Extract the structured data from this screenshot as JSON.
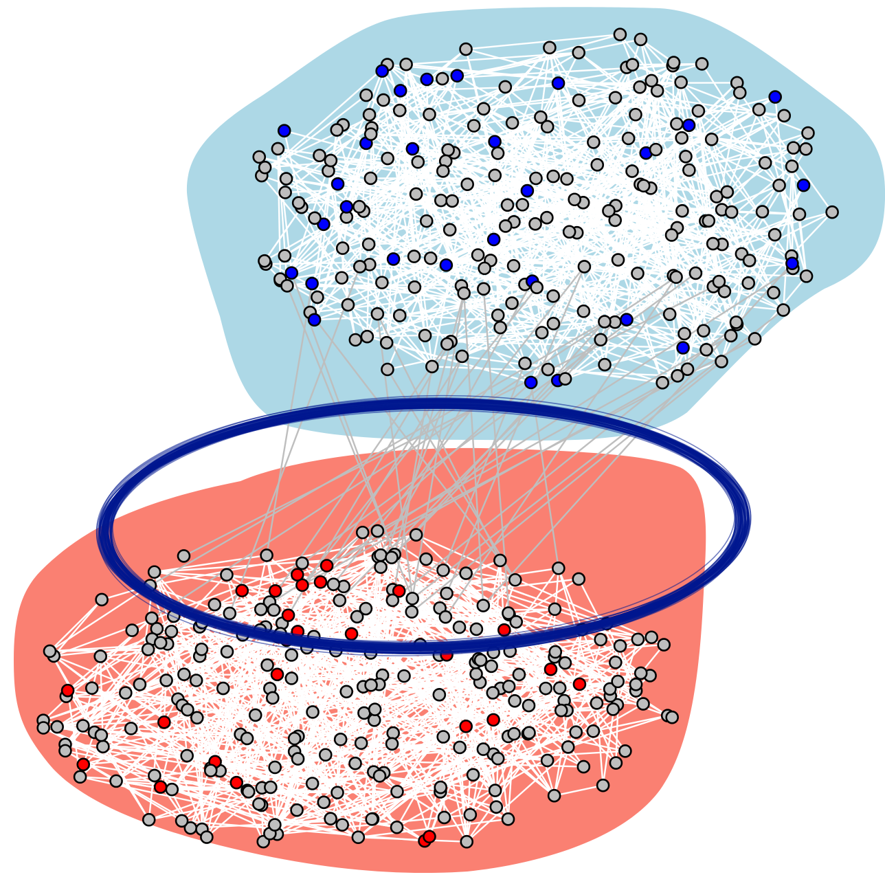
{
  "diagram": {
    "type": "multilayer-network",
    "colors": {
      "background": "#ffffff",
      "top_region": "#add8e6",
      "bottom_region": "#fa8072",
      "intra_edge": "#ffffff",
      "inter_edge": "#bebebe",
      "node_default": "#bebebe",
      "node_highlight_top": "#0000ff",
      "node_highlight_bottom": "#ff0000",
      "node_stroke": "#000000",
      "ring": "#00188f"
    },
    "layers": [
      {
        "name": "",
        "region_color": "top_region",
        "highlight_color": "node_highlight_top",
        "node_count": 230,
        "highlighted_count": 30
      },
      {
        "name": "",
        "region_color": "bottom_region",
        "highlight_color": "node_highlight_bottom",
        "node_count": 260,
        "highlighted_count": 26
      }
    ],
    "inter_layer_links": 40,
    "ring": true
  }
}
